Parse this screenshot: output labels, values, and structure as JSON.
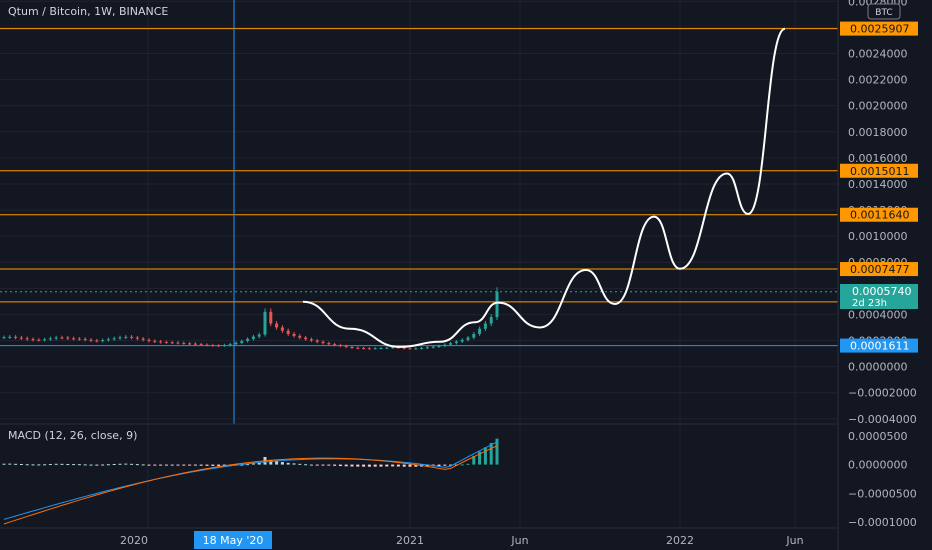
{
  "header": {
    "symbol_title": "Qtum / Bitcoin, 1W, BINANCE",
    "currency_badge": "BTC"
  },
  "macd_panel": {
    "title": "MACD (12, 26, close, 9)",
    "y_ticks": [
      "0.0000500",
      "0.0000000",
      "−0.0000500",
      "−0.0001000"
    ]
  },
  "price_panel": {
    "y_ticks": [
      "0.0028000",
      "0.0026000",
      "0.0024000",
      "0.0022000",
      "0.0020000",
      "0.0018000",
      "0.0016000",
      "0.0014000",
      "0.0012000",
      "0.0010000",
      "0.0008000",
      "0.0006000",
      "0.0004000",
      "0.0002000",
      "0.0000000",
      "−0.0002000",
      "−0.0004000"
    ],
    "level_labels": [
      {
        "text": "0.0025907",
        "value": 0.0025907,
        "color": "#ff9800"
      },
      {
        "text": "0.0015011",
        "value": 0.0015011,
        "color": "#ff9800"
      },
      {
        "text": "0.0011640",
        "value": 0.001164,
        "color": "#ff9800"
      },
      {
        "text": "0.0007477",
        "value": 0.0007477,
        "color": "#ff9800"
      },
      {
        "text": "0.0004963",
        "value": 0.0004963,
        "color": "#ff9800"
      },
      {
        "text": "0.0001611",
        "value": 0.0001611,
        "color": "#2196f3"
      }
    ],
    "current_price": {
      "text": "0.0005740",
      "countdown": "2d 23h",
      "value": 0.000574
    }
  },
  "x_axis": {
    "ticks": [
      "2020",
      "2021",
      "Jun",
      "2022",
      "Jun"
    ],
    "crosshair_label": "18 May '20"
  },
  "chart_data": [
    {
      "type": "candlestick",
      "title": "Qtum / Bitcoin, 1W, BINANCE",
      "y_unit": "BTC",
      "ylim": [
        -0.00044,
        0.00281
      ],
      "horizontal_levels": [
        0.0025907,
        0.0015011,
        0.001164,
        0.0007477,
        0.0004963,
        0.0001611
      ],
      "last_price": 0.000574,
      "projection_path_points": [
        [
          0.000497,
          0.00041
        ],
        [
          0.00035,
          0.00024
        ],
        [
          0.000186,
          0.000151
        ],
        [
          0.000143,
          0.00019
        ],
        [
          0.00032,
          0.00042
        ],
        [
          0.00049
        ],
        [
          0.00034,
          0.0003
        ],
        [
          0.00041,
          0.00074
        ],
        [
          0.00052
        ],
        [
          0.00048,
          0.00052
        ],
        [
          0.0007
        ],
        [
          0.00115
        ],
        [
          0.00086
        ],
        [
          0.00075
        ],
        [
          0.00092
        ],
        [
          0.00148
        ],
        [
          0.00123
        ],
        [
          0.00117
        ],
        [
          0.0014
        ],
        [
          0.00259
        ]
      ],
      "candles_close": [
        0.000225,
        0.000228,
        0.000222,
        0.000217,
        0.00021,
        0.000206,
        0.000205,
        0.000209,
        0.000216,
        0.000223,
        0.000222,
        0.000217,
        0.000214,
        0.000212,
        0.000206,
        0.0002,
        0.000197,
        0.000203,
        0.00021,
        0.000217,
        0.000224,
        0.000228,
        0.000222,
        0.000214,
        0.000205,
        0.000197,
        0.000192,
        0.000188,
        0.000186,
        0.000184,
        0.000181,
        0.000178,
        0.000176,
        0.000172,
        0.000168,
        0.000165,
        0.000162,
        0.000161,
        0.000165,
        0.000172,
        0.000182,
        0.000196,
        0.000212,
        0.00023,
        0.000245,
        0.00042,
        0.00033,
        0.0003,
        0.000275,
        0.00025,
        0.000235,
        0.000222,
        0.00021,
        0.0002,
        0.00019,
        0.00018,
        0.000172,
        0.000165,
        0.000158,
        0.00015,
        0.000145,
        0.000142,
        0.00014,
        0.000139,
        0.000141,
        0.000142,
        0.000145,
        0.000148,
        0.000145,
        0.00014,
        0.000138,
        0.000139,
        0.000143,
        0.000148,
        0.000153,
        0.000158,
        0.000168,
        0.00018,
        0.000192,
        0.000205,
        0.000222,
        0.00025,
        0.00029,
        0.00033,
        0.00038,
        0.000574
      ]
    },
    {
      "type": "line",
      "title": "MACD (12, 26, close, 9)",
      "ylim": [
        -0.00011,
        6e-05
      ],
      "series": [],
      "histogram_range": [
        -1e-05,
        4.5e-05
      ]
    }
  ]
}
